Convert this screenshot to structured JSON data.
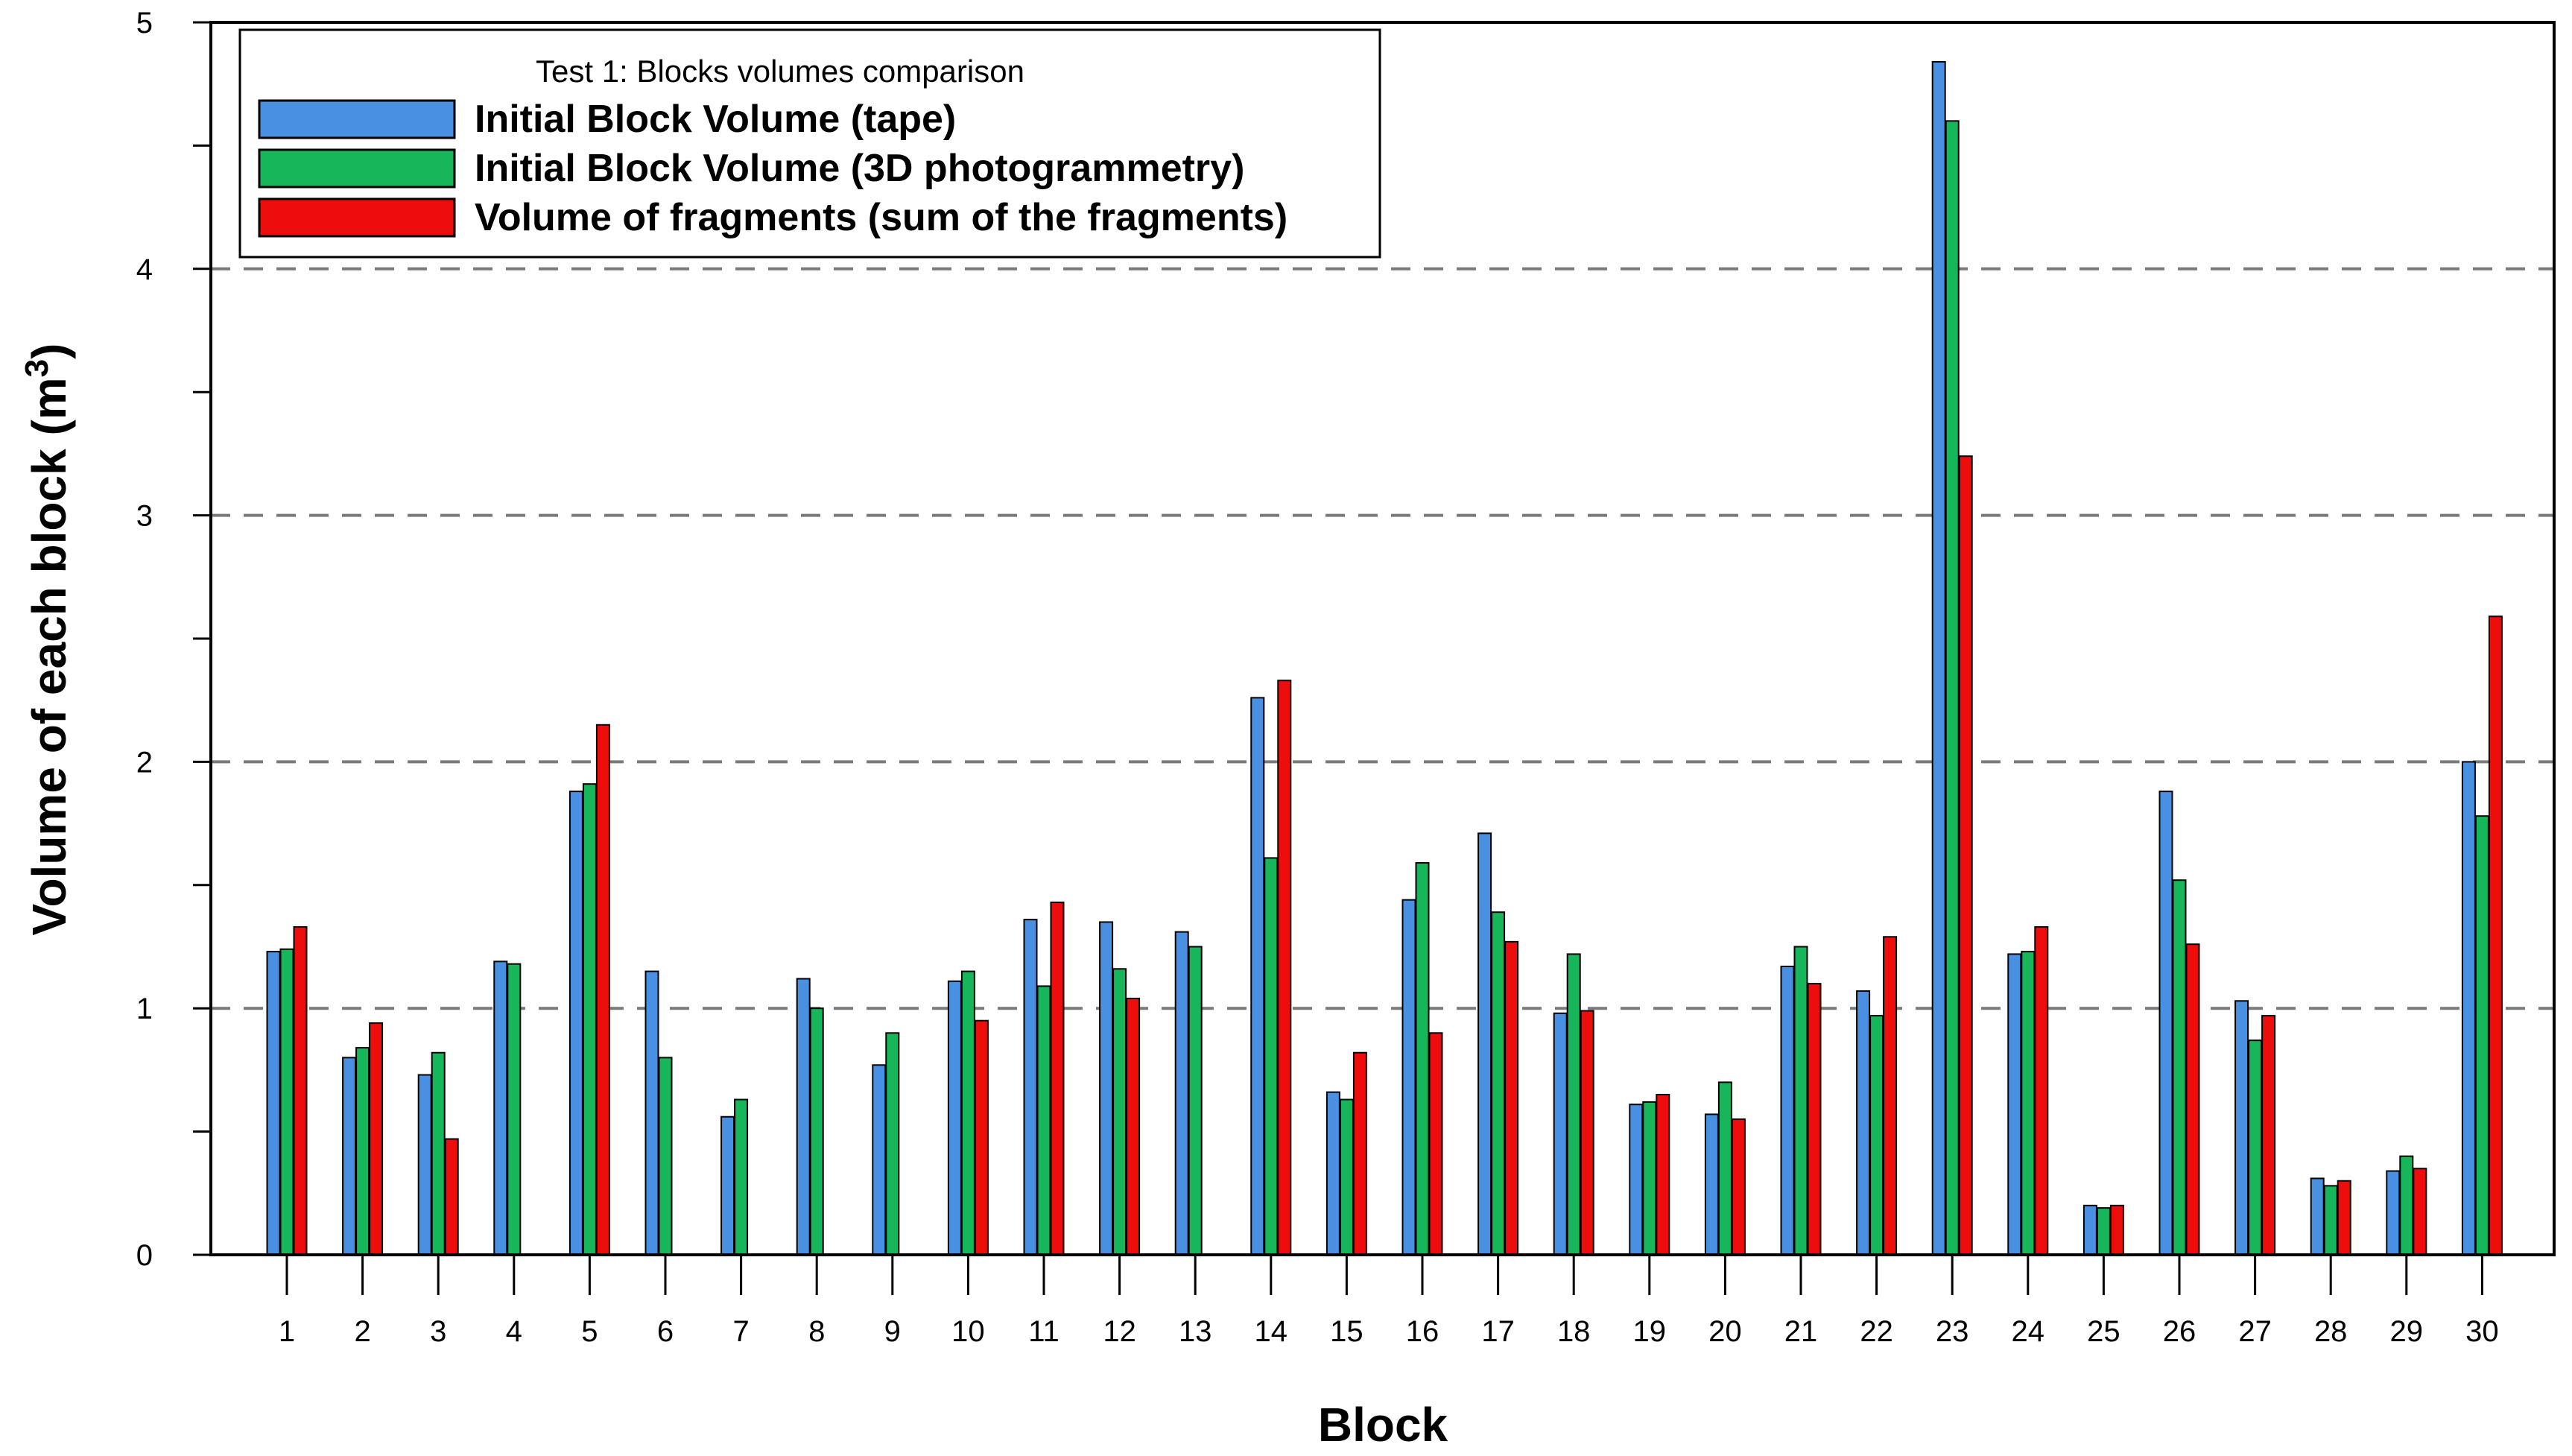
{
  "chart_data": {
    "type": "bar",
    "legend_title": "Test 1: Blocks volumes comparison",
    "xlabel": "Block",
    "ylabel": "Volume of each block (m",
    "ylabel_sup": "3",
    "ylabel_close": ")",
    "ylim": [
      0,
      5
    ],
    "yticks": [
      "0",
      "1",
      "2",
      "3",
      "4",
      "5"
    ],
    "grid": "dashed horizontal at 1, 2, 3, 4",
    "legend_position": "top-left",
    "categories": [
      "1",
      "2",
      "3",
      "4",
      "5",
      "6",
      "7",
      "8",
      "9",
      "10",
      "11",
      "12",
      "13",
      "14",
      "15",
      "16",
      "17",
      "18",
      "19",
      "20",
      "21",
      "22",
      "23",
      "24",
      "25",
      "26",
      "27",
      "28",
      "29",
      "30"
    ],
    "series": [
      {
        "name": "Initial Block Volume (tape)",
        "color": "#4a90e2",
        "values": [
          1.23,
          0.8,
          0.73,
          1.19,
          1.88,
          1.15,
          0.56,
          1.12,
          0.77,
          1.11,
          1.36,
          1.35,
          1.31,
          2.26,
          0.66,
          1.44,
          1.71,
          0.98,
          0.61,
          0.57,
          1.17,
          1.07,
          4.84,
          1.22,
          0.2,
          1.88,
          1.03,
          0.31,
          0.34,
          2.0
        ]
      },
      {
        "name": "Initial Block Volume (3D photogrammetry)",
        "color": "#18b65a",
        "values": [
          1.24,
          0.84,
          0.82,
          1.18,
          1.91,
          0.8,
          0.63,
          1.0,
          0.9,
          1.15,
          1.09,
          1.16,
          1.25,
          1.61,
          0.63,
          1.59,
          1.39,
          1.22,
          0.62,
          0.7,
          1.25,
          0.97,
          4.6,
          1.23,
          0.19,
          1.52,
          0.87,
          0.28,
          0.4,
          1.78
        ]
      },
      {
        "name": "Volume of fragments (sum of the fragments)",
        "color": "#ee0d0d",
        "values": [
          1.33,
          0.94,
          0.47,
          null,
          2.15,
          null,
          null,
          null,
          null,
          0.95,
          1.43,
          1.04,
          null,
          2.33,
          0.82,
          0.9,
          1.27,
          0.99,
          0.65,
          0.55,
          1.1,
          1.29,
          3.24,
          1.33,
          0.2,
          1.26,
          0.97,
          0.3,
          0.35,
          2.59
        ]
      }
    ]
  }
}
